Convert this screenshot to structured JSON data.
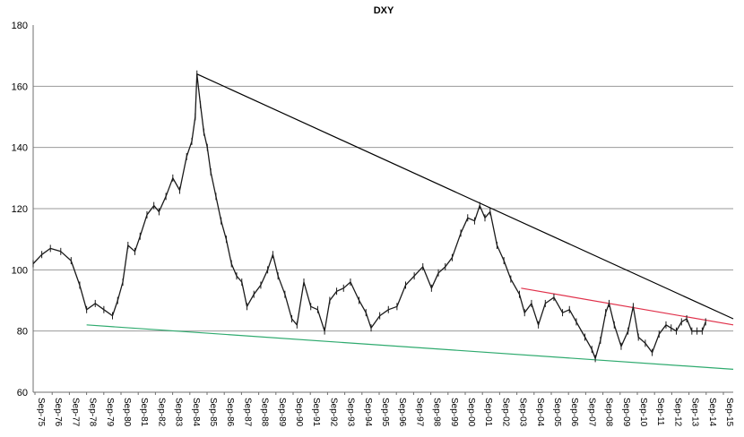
{
  "chart_data": {
    "type": "line",
    "title": "DXY",
    "xlabel": "",
    "ylabel": "",
    "ylim": [
      60,
      180
    ],
    "yticks": [
      60,
      80,
      100,
      120,
      140,
      160,
      180
    ],
    "grid": true,
    "legend": "none",
    "x_tick_labels": [
      "Sep-75",
      "Sep-76",
      "Sep-77",
      "Sep-78",
      "Sep-79",
      "Sep-80",
      "Sep-81",
      "Sep-82",
      "Sep-83",
      "Sep-84",
      "Sep-85",
      "Sep-86",
      "Sep-87",
      "Sep-88",
      "Sep-89",
      "Sep-90",
      "Sep-91",
      "Sep-92",
      "Sep-93",
      "Sep-94",
      "Sep-95",
      "Sep-96",
      "Sep-97",
      "Sep-98",
      "Sep-99",
      "Sep-00",
      "Sep-01",
      "Sep-02",
      "Sep-03",
      "Sep-04",
      "Sep-05",
      "Sep-06",
      "Sep-07",
      "Sep-08",
      "Sep-09",
      "Sep-10",
      "Sep-11",
      "Sep-12",
      "Sep-13",
      "Sep-14",
      "Sep-15"
    ],
    "series": [
      {
        "values": [
          {
            "x": 1975.7,
            "y": 102
          },
          {
            "x": 1976.2,
            "y": 105
          },
          {
            "x": 1976.7,
            "y": 107
          },
          {
            "x": 1977.3,
            "y": 106
          },
          {
            "x": 1977.9,
            "y": 103
          },
          {
            "x": 1978.4,
            "y": 95
          },
          {
            "x": 1978.8,
            "y": 87
          },
          {
            "x": 1979.3,
            "y": 89
          },
          {
            "x": 1979.8,
            "y": 87
          },
          {
            "x": 1980.3,
            "y": 85
          },
          {
            "x": 1980.6,
            "y": 90
          },
          {
            "x": 1980.9,
            "y": 96
          },
          {
            "x": 1981.2,
            "y": 108
          },
          {
            "x": 1981.6,
            "y": 106
          },
          {
            "x": 1981.9,
            "y": 111
          },
          {
            "x": 1982.3,
            "y": 118
          },
          {
            "x": 1982.7,
            "y": 121
          },
          {
            "x": 1983.0,
            "y": 119
          },
          {
            "x": 1983.4,
            "y": 124
          },
          {
            "x": 1983.8,
            "y": 130
          },
          {
            "x": 1984.2,
            "y": 126
          },
          {
            "x": 1984.6,
            "y": 137
          },
          {
            "x": 1984.9,
            "y": 142
          },
          {
            "x": 1985.1,
            "y": 150
          },
          {
            "x": 1985.2,
            "y": 164
          },
          {
            "x": 1985.4,
            "y": 154
          },
          {
            "x": 1985.6,
            "y": 145
          },
          {
            "x": 1985.8,
            "y": 140
          },
          {
            "x": 1986.0,
            "y": 132
          },
          {
            "x": 1986.3,
            "y": 124
          },
          {
            "x": 1986.6,
            "y": 116
          },
          {
            "x": 1986.9,
            "y": 110
          },
          {
            "x": 1987.2,
            "y": 102
          },
          {
            "x": 1987.5,
            "y": 98
          },
          {
            "x": 1987.8,
            "y": 96
          },
          {
            "x": 1988.1,
            "y": 88
          },
          {
            "x": 1988.5,
            "y": 92
          },
          {
            "x": 1988.9,
            "y": 95
          },
          {
            "x": 1989.3,
            "y": 100
          },
          {
            "x": 1989.6,
            "y": 105
          },
          {
            "x": 1989.9,
            "y": 98
          },
          {
            "x": 1990.3,
            "y": 92
          },
          {
            "x": 1990.7,
            "y": 84
          },
          {
            "x": 1991.0,
            "y": 82
          },
          {
            "x": 1991.4,
            "y": 96
          },
          {
            "x": 1991.8,
            "y": 88
          },
          {
            "x": 1992.2,
            "y": 87
          },
          {
            "x": 1992.6,
            "y": 80
          },
          {
            "x": 1992.9,
            "y": 90
          },
          {
            "x": 1993.3,
            "y": 93
          },
          {
            "x": 1993.7,
            "y": 94
          },
          {
            "x": 1994.1,
            "y": 96
          },
          {
            "x": 1994.6,
            "y": 90
          },
          {
            "x": 1995.0,
            "y": 86
          },
          {
            "x": 1995.3,
            "y": 81
          },
          {
            "x": 1995.8,
            "y": 85
          },
          {
            "x": 1996.3,
            "y": 87
          },
          {
            "x": 1996.8,
            "y": 88
          },
          {
            "x": 1997.3,
            "y": 95
          },
          {
            "x": 1997.8,
            "y": 98
          },
          {
            "x": 1998.3,
            "y": 101
          },
          {
            "x": 1998.8,
            "y": 94
          },
          {
            "x": 1999.2,
            "y": 99
          },
          {
            "x": 1999.6,
            "y": 101
          },
          {
            "x": 2000.0,
            "y": 104
          },
          {
            "x": 2000.5,
            "y": 112
          },
          {
            "x": 2000.9,
            "y": 117
          },
          {
            "x": 2001.3,
            "y": 116
          },
          {
            "x": 2001.6,
            "y": 121
          },
          {
            "x": 2001.9,
            "y": 117
          },
          {
            "x": 2002.2,
            "y": 119
          },
          {
            "x": 2002.6,
            "y": 108
          },
          {
            "x": 2003.0,
            "y": 103
          },
          {
            "x": 2003.4,
            "y": 97
          },
          {
            "x": 2003.9,
            "y": 92
          },
          {
            "x": 2004.2,
            "y": 86
          },
          {
            "x": 2004.6,
            "y": 89
          },
          {
            "x": 2005.0,
            "y": 82
          },
          {
            "x": 2005.4,
            "y": 89
          },
          {
            "x": 2005.9,
            "y": 91
          },
          {
            "x": 2006.4,
            "y": 86
          },
          {
            "x": 2006.8,
            "y": 87
          },
          {
            "x": 2007.2,
            "y": 83
          },
          {
            "x": 2007.7,
            "y": 78
          },
          {
            "x": 2008.1,
            "y": 74
          },
          {
            "x": 2008.3,
            "y": 71
          },
          {
            "x": 2008.6,
            "y": 77
          },
          {
            "x": 2008.9,
            "y": 86
          },
          {
            "x": 2009.1,
            "y": 89
          },
          {
            "x": 2009.4,
            "y": 82
          },
          {
            "x": 2009.8,
            "y": 75
          },
          {
            "x": 2010.2,
            "y": 80
          },
          {
            "x": 2010.5,
            "y": 88
          },
          {
            "x": 2010.8,
            "y": 78
          },
          {
            "x": 2011.2,
            "y": 76
          },
          {
            "x": 2011.6,
            "y": 73
          },
          {
            "x": 2012.0,
            "y": 79
          },
          {
            "x": 2012.4,
            "y": 82
          },
          {
            "x": 2012.7,
            "y": 81
          },
          {
            "x": 2013.0,
            "y": 80
          },
          {
            "x": 2013.3,
            "y": 83
          },
          {
            "x": 2013.6,
            "y": 84
          },
          {
            "x": 2013.9,
            "y": 80
          },
          {
            "x": 2014.2,
            "y": 80
          },
          {
            "x": 2014.5,
            "y": 80
          },
          {
            "x": 2014.7,
            "y": 83
          }
        ]
      }
    ],
    "trendlines": [
      {
        "color": "#000000",
        "from": {
          "x": 1985.2,
          "y": 164
        },
        "to": {
          "x": 2016.3,
          "y": 84
        }
      },
      {
        "color": "#e0304a",
        "from": {
          "x": 2004.0,
          "y": 94
        },
        "to": {
          "x": 2016.3,
          "y": 82
        }
      },
      {
        "color": "#2eaa6e",
        "from": {
          "x": 1978.8,
          "y": 82
        },
        "to": {
          "x": 2016.3,
          "y": 67.5
        }
      }
    ],
    "colors": {
      "series": "#1a1a1a",
      "grid": "#9a9a9a",
      "axis": "#6f6f6f"
    }
  }
}
